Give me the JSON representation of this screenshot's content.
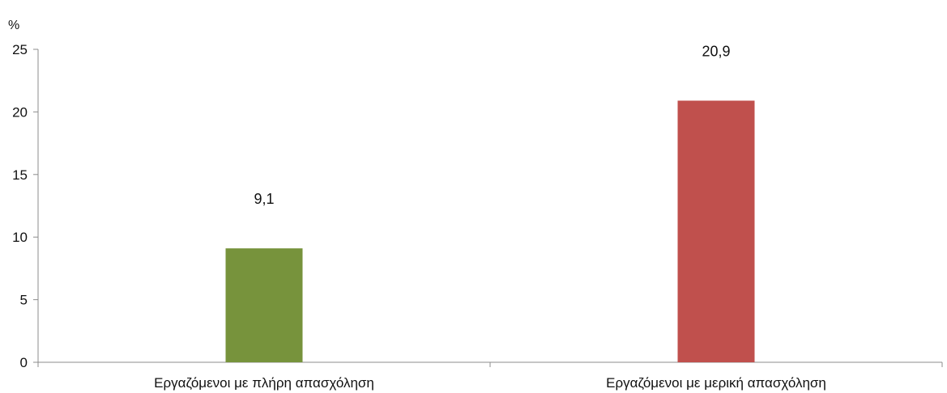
{
  "chart_data": {
    "type": "bar",
    "title": "",
    "xlabel": "",
    "ylabel": "%",
    "ylim": [
      0,
      25
    ],
    "yticks": [
      0,
      5,
      10,
      15,
      20,
      25
    ],
    "ytick_labels": [
      "0",
      "5",
      "10",
      "15",
      "20",
      "25"
    ],
    "grid": false,
    "legend": "none",
    "categories": [
      "Εργαζόμενοι με πλήρη απασχόληση",
      "Εργαζόμενοι με μερική απασχόληση"
    ],
    "values": [
      9.1,
      20.9
    ],
    "data_labels": [
      "9,1",
      "20,9"
    ],
    "colors": [
      "#77933c",
      "#c0504d"
    ]
  }
}
